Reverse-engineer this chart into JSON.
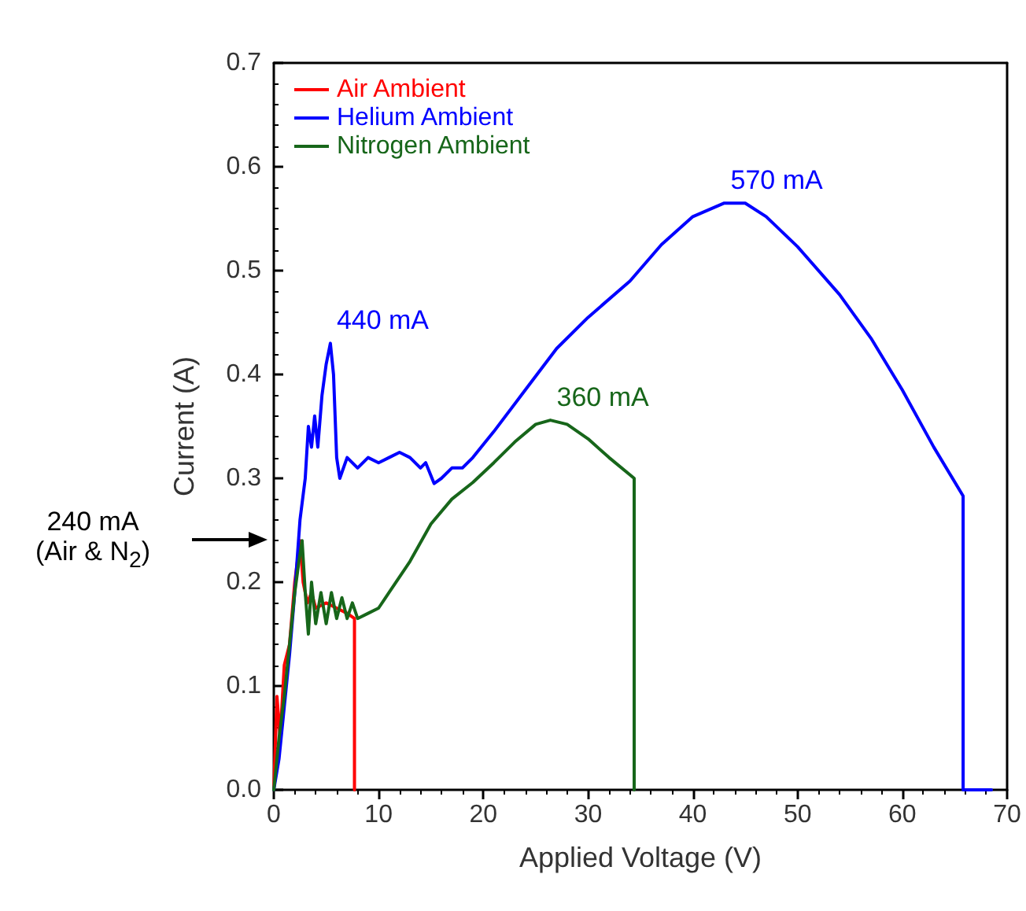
{
  "chart_data": {
    "type": "line",
    "xlabel": "Applied Voltage (V)",
    "ylabel": "Current (A)",
    "xlim": [
      0,
      70
    ],
    "xticks": [
      0,
      10,
      20,
      30,
      40,
      50,
      60,
      70
    ],
    "ylim": [
      0,
      0.7
    ],
    "yticks": [
      {
        "value": 0,
        "label": "0.0"
      },
      {
        "value": 0.1,
        "label": "0.1"
      },
      {
        "value": 0.2,
        "label": "0.2"
      },
      {
        "value": 0.3,
        "label": "0.3"
      },
      {
        "value": 0.4,
        "label": "0.4"
      },
      {
        "value": 0.5,
        "label": "0.5"
      },
      {
        "value": 0.6,
        "label": "0.6"
      },
      {
        "value": 0.7,
        "label": "0.7"
      }
    ],
    "grid": false,
    "legend": "top left",
    "marker": "none",
    "line_style": "solid",
    "series": [
      {
        "name": "Air Ambient",
        "color": "#ff0000",
        "x": [
          0,
          0.3,
          0.6,
          1,
          1.5,
          2,
          2.5,
          2.8,
          3.2,
          3.6,
          4,
          5,
          6,
          7,
          7.7,
          7.7
        ],
        "values": [
          0,
          0.09,
          0.05,
          0.12,
          0.14,
          0.2,
          0.24,
          0.2,
          0.18,
          0.19,
          0.175,
          0.18,
          0.175,
          0.17,
          0.165,
          0
        ]
      },
      {
        "name": "Helium Ambient",
        "color": "#0000ff",
        "x": [
          0,
          0.5,
          1,
          1.5,
          2,
          2.5,
          3,
          3.3,
          3.6,
          3.9,
          4.2,
          4.6,
          5,
          5.4,
          5.7,
          6,
          6.3,
          7,
          8,
          9,
          10,
          11,
          12,
          13,
          14,
          14.5,
          15.3,
          16,
          17,
          18,
          19,
          21,
          24,
          27,
          30,
          34,
          37,
          40,
          43,
          45,
          47,
          50,
          54,
          57,
          60,
          63,
          65.8,
          65.8,
          68.5
        ],
        "values": [
          0,
          0.03,
          0.08,
          0.13,
          0.19,
          0.26,
          0.3,
          0.35,
          0.33,
          0.36,
          0.33,
          0.38,
          0.41,
          0.43,
          0.4,
          0.32,
          0.3,
          0.32,
          0.31,
          0.32,
          0.315,
          0.32,
          0.325,
          0.32,
          0.31,
          0.315,
          0.295,
          0.3,
          0.31,
          0.31,
          0.32,
          0.345,
          0.385,
          0.425,
          0.455,
          0.49,
          0.525,
          0.552,
          0.565,
          0.565,
          0.552,
          0.523,
          0.477,
          0.435,
          0.385,
          0.33,
          0.283,
          0,
          0
        ]
      },
      {
        "name": "Nitrogen Ambient",
        "color": "#17661a",
        "x": [
          0,
          0.5,
          1,
          1.5,
          2,
          2.4,
          2.7,
          3,
          3.3,
          3.6,
          4,
          4.5,
          5,
          5.5,
          6,
          6.5,
          7,
          7.5,
          8,
          9,
          10,
          11,
          12,
          13,
          15,
          17,
          19,
          21,
          23,
          25,
          26.4,
          28,
          30,
          32,
          34.4,
          34.4
        ],
        "values": [
          0,
          0.05,
          0.09,
          0.14,
          0.19,
          0.22,
          0.24,
          0.19,
          0.15,
          0.2,
          0.16,
          0.19,
          0.16,
          0.19,
          0.165,
          0.185,
          0.165,
          0.18,
          0.165,
          0.17,
          0.175,
          0.19,
          0.205,
          0.22,
          0.256,
          0.28,
          0.296,
          0.315,
          0.335,
          0.352,
          0.356,
          0.352,
          0.338,
          0.32,
          0.3,
          0
        ]
      }
    ],
    "annotations": [
      {
        "text": "440 mA",
        "x": 5.4,
        "y": 0.43
      },
      {
        "text": "570 mA",
        "x": 43,
        "y": 0.565
      },
      {
        "text": "360 mA",
        "x": 26.4,
        "y": 0.356
      },
      "240 mA\n(Air & N$_{2}$)"
    ]
  }
}
